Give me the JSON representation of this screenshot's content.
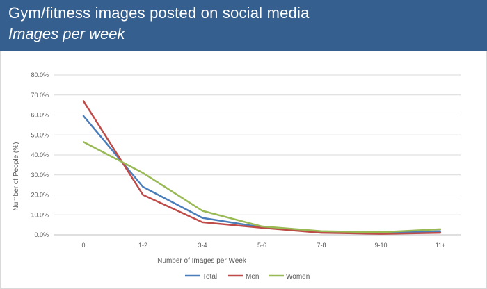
{
  "header": {
    "title": "Gym/fitness images posted on social media",
    "subtitle": "Images per week",
    "color": "#355f8f"
  },
  "chart_data": {
    "type": "line",
    "categories": [
      "0",
      "1-2",
      "3-4",
      "5-6",
      "7-8",
      "9-10",
      "11+"
    ],
    "series": [
      {
        "name": "Total",
        "color": "#4a7ebb",
        "values": [
          59.5,
          24.0,
          8.5,
          3.8,
          1.5,
          1.0,
          1.8
        ]
      },
      {
        "name": "Men",
        "color": "#be4b48",
        "values": [
          67.0,
          20.0,
          6.3,
          3.5,
          1.0,
          0.5,
          1.0
        ]
      },
      {
        "name": "Women",
        "color": "#98b954",
        "values": [
          46.5,
          31.0,
          12.0,
          4.2,
          1.8,
          1.3,
          2.8
        ]
      }
    ],
    "xlabel": "Number of Images per Week",
    "ylabel": "Number of People (%)",
    "ylim": [
      0,
      80
    ],
    "yticks": [
      "0.0%",
      "10.0%",
      "20.0%",
      "30.0%",
      "40.0%",
      "50.0%",
      "60.0%",
      "70.0%",
      "80.0%"
    ],
    "grid": true,
    "legend_position": "bottom"
  }
}
